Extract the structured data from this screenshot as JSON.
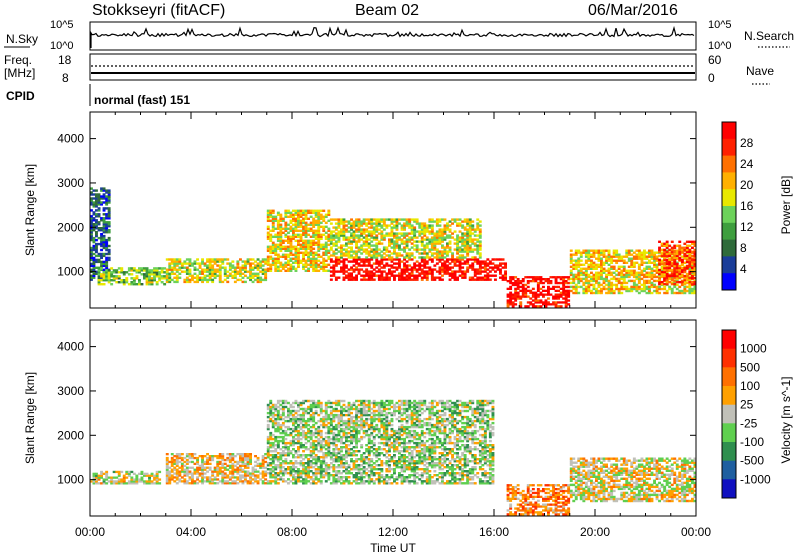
{
  "header": {
    "station": "Stokkseyri (fitACF)",
    "beam": "Beam 02",
    "date": "06/Mar/2016"
  },
  "strip_panels": {
    "nsky": {
      "label": "N.Sky",
      "tick_top": "10^5",
      "tick_bottom": "10^0"
    },
    "nsearch": {
      "label": "N.Search",
      "tick_top": "10^5",
      "tick_bottom": "10^0"
    },
    "freq": {
      "label_line1": "Freq.",
      "label_line2": "[MHz]",
      "tick_top": "18",
      "tick_bottom": "8"
    },
    "nave": {
      "label": "Nave",
      "tick_top": "60",
      "tick_bottom": "0"
    },
    "cpid": {
      "label": "CPID",
      "mode": "normal (fast) 151"
    }
  },
  "chart_data": [
    {
      "type": "heatmap",
      "title": "",
      "panel": "power",
      "xlabel": "Time UT",
      "ylabel": "Slant Range [km]",
      "xlim_hours": [
        0,
        24
      ],
      "ylim": [
        180,
        4600
      ],
      "x_ticks": [
        "00:00",
        "04:00",
        "08:00",
        "12:00",
        "16:00",
        "20:00",
        "00:00"
      ],
      "y_ticks": [
        1000,
        2000,
        3000,
        4000
      ],
      "colorbar": {
        "label": "Power [dB]",
        "tick_labels": [
          "4",
          "8",
          "12",
          "16",
          "20",
          "24",
          "28"
        ],
        "colors": [
          "#0000ff",
          "#1a3d99",
          "#2f6b3a",
          "#3e9e3e",
          "#6cd25a",
          "#e8e800",
          "#ffb000",
          "#ff7000",
          "#ff2000",
          "#ff0000"
        ]
      },
      "regions": [
        {
          "t0": 0.0,
          "t1": 0.8,
          "r0": 800,
          "r1": 2900,
          "level": 0.2
        },
        {
          "t0": 0.3,
          "t1": 3.0,
          "r0": 700,
          "r1": 1100,
          "level": 0.45
        },
        {
          "t0": 3.0,
          "t1": 7.0,
          "r0": 750,
          "r1": 1300,
          "level": 0.55
        },
        {
          "t0": 7.0,
          "t1": 9.5,
          "r0": 1000,
          "r1": 2400,
          "level": 0.6
        },
        {
          "t0": 9.5,
          "t1": 16.5,
          "r0": 800,
          "r1": 1300,
          "level": 0.95
        },
        {
          "t0": 9.5,
          "t1": 15.5,
          "r0": 1300,
          "r1": 2200,
          "level": 0.55
        },
        {
          "t0": 16.5,
          "t1": 19.0,
          "r0": 200,
          "r1": 900,
          "level": 0.95
        },
        {
          "t0": 19.0,
          "t1": 24.0,
          "r0": 500,
          "r1": 1500,
          "level": 0.6
        },
        {
          "t0": 22.5,
          "t1": 24.0,
          "r0": 700,
          "r1": 1700,
          "level": 0.8
        }
      ]
    },
    {
      "type": "heatmap",
      "title": "",
      "panel": "velocity",
      "xlabel": "Time UT",
      "ylabel": "Slant Range [km]",
      "xlim_hours": [
        0,
        24
      ],
      "ylim": [
        180,
        4600
      ],
      "x_ticks": [
        "00:00",
        "04:00",
        "08:00",
        "12:00",
        "16:00",
        "20:00",
        "00:00"
      ],
      "y_ticks": [
        1000,
        2000,
        3000,
        4000
      ],
      "colorbar": {
        "label": "Velocity [m s^-1]",
        "tick_labels": [
          "1000",
          "500",
          "100",
          "25",
          "-25",
          "-100",
          "-500",
          "-1000"
        ],
        "colors": [
          "#1010c0",
          "#1f5fa0",
          "#2f8f4f",
          "#5fcf4f",
          "#c0c0b8",
          "#ffa000",
          "#ff7000",
          "#ff3000",
          "#ff0000"
        ]
      },
      "regions": [
        {
          "t0": 0.0,
          "t1": 2.8,
          "r0": 900,
          "r1": 1200,
          "level": 0.5
        },
        {
          "t0": 3.0,
          "t1": 7.0,
          "r0": 900,
          "r1": 1600,
          "level": 0.58
        },
        {
          "t0": 7.0,
          "t1": 16.0,
          "r0": 900,
          "r1": 2800,
          "level": 0.44
        },
        {
          "t0": 16.5,
          "t1": 19.0,
          "r0": 200,
          "r1": 900,
          "level": 0.7
        },
        {
          "t0": 19.0,
          "t1": 24.0,
          "r0": 500,
          "r1": 1500,
          "level": 0.52
        }
      ]
    }
  ]
}
